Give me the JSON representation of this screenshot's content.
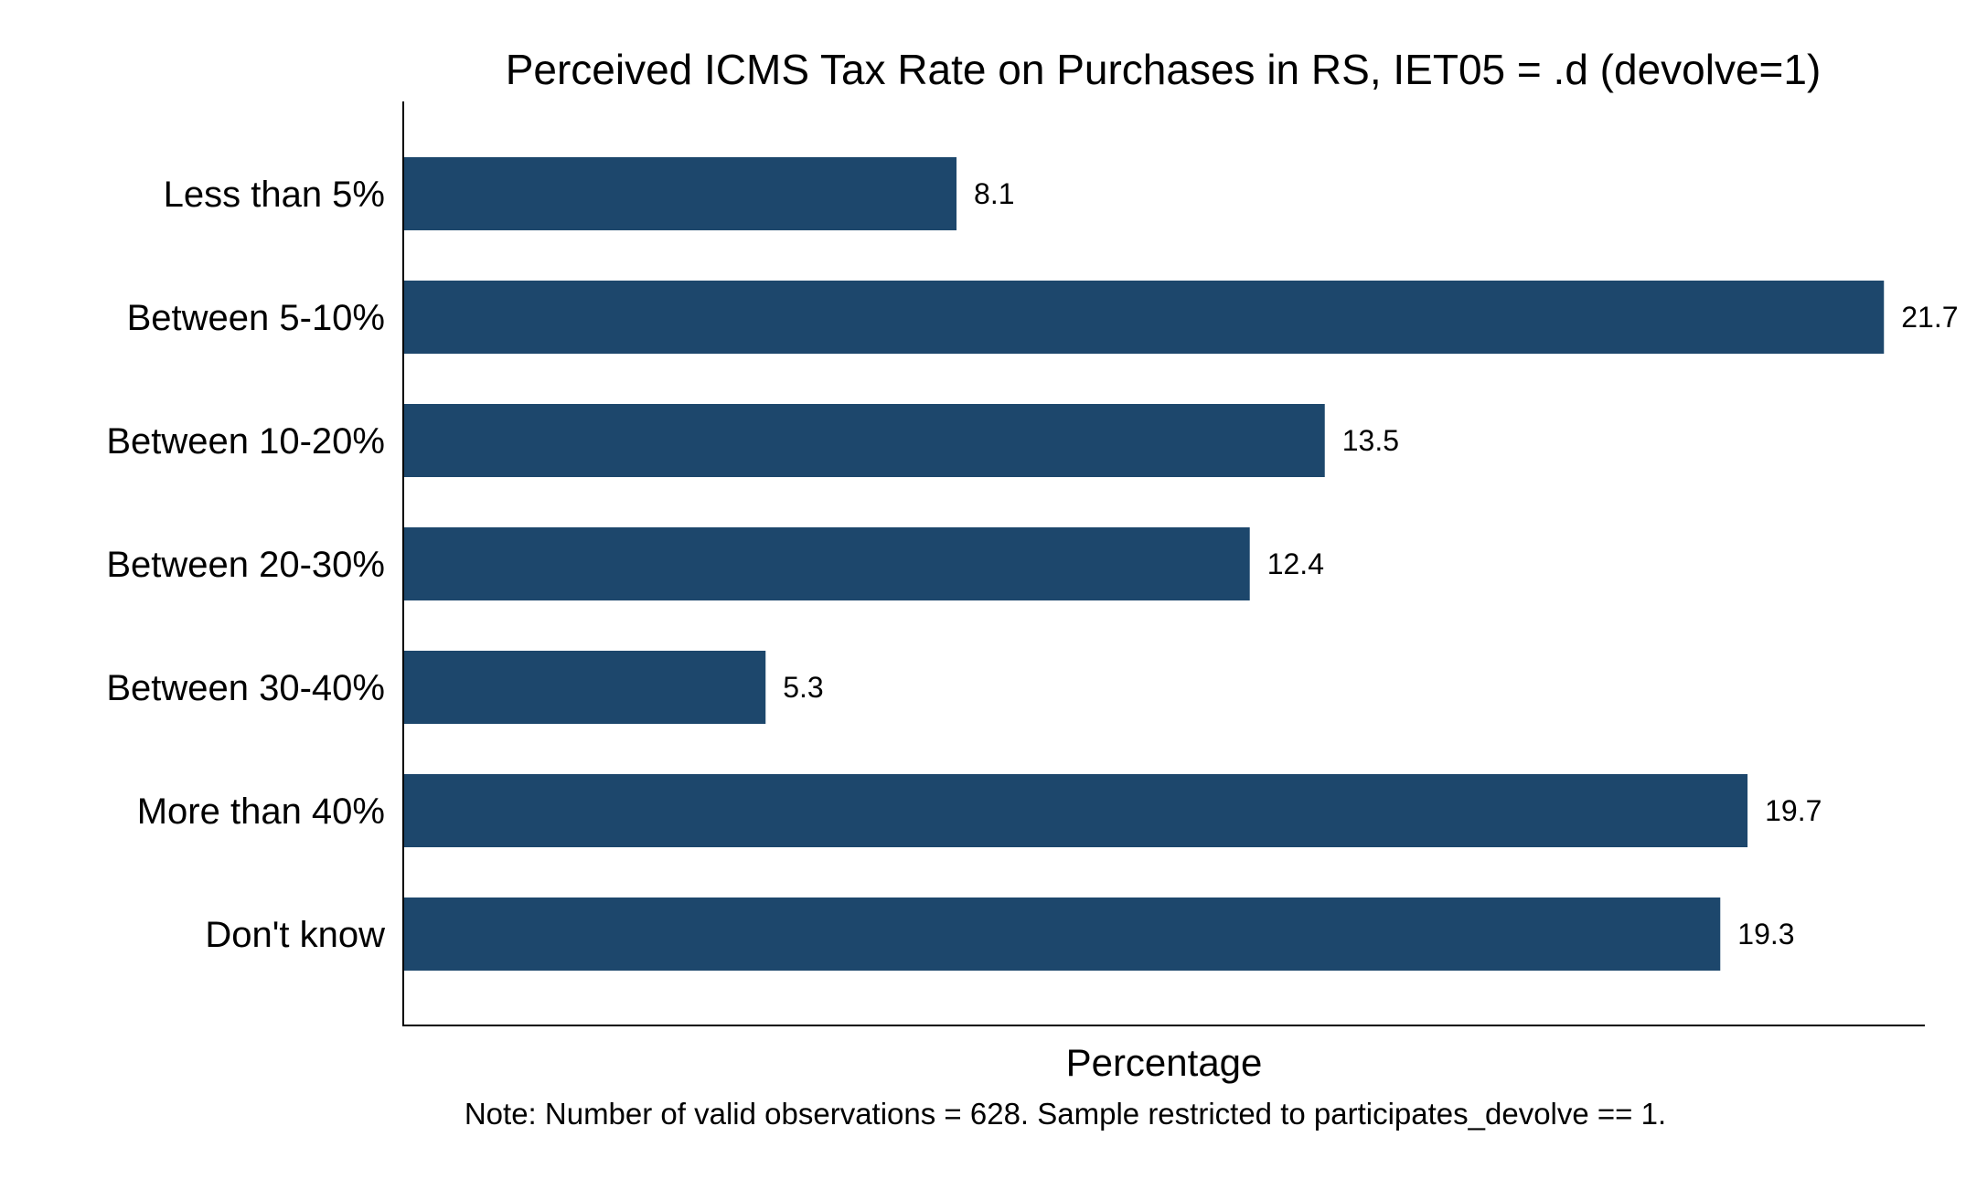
{
  "chart_data": {
    "type": "bar",
    "orientation": "horizontal",
    "title": "Perceived ICMS Tax Rate on Purchases in RS, IET05 = .d (devolve=1)",
    "xlabel": "Percentage",
    "ylabel": "",
    "categories": [
      "Less than 5%",
      "Between 5-10%",
      "Between 10-20%",
      "Between 20-30%",
      "Between 30-40%",
      "More than 40%",
      "Don't know"
    ],
    "values": [
      8.1,
      21.7,
      13.5,
      12.4,
      5.3,
      19.7,
      19.3
    ],
    "value_labels": [
      "8.1",
      "21.7",
      "13.5",
      "12.4",
      "5.3",
      "19.7",
      "19.3"
    ],
    "xlim": [
      0,
      22.3
    ],
    "bar_color": "#1d476c",
    "grid": false,
    "note": "Note: Number of valid observations = 628. Sample restricted to participates_devolve == 1."
  }
}
